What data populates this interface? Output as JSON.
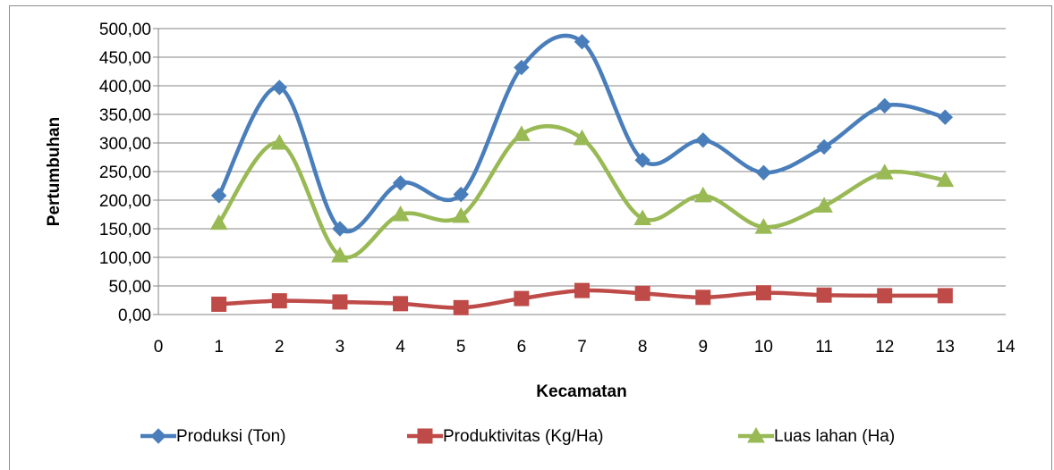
{
  "chart_data": {
    "type": "line",
    "smooth": true,
    "title": "",
    "xlabel": "Kecamatan",
    "ylabel": "Pertumbuhan",
    "xlim": [
      0,
      14
    ],
    "ylim": [
      0,
      500
    ],
    "x_ticks": [
      "0",
      "1",
      "2",
      "3",
      "4",
      "5",
      "6",
      "7",
      "8",
      "9",
      "10",
      "11",
      "12",
      "13",
      "14"
    ],
    "y_ticks": [
      "0,00",
      "50,00",
      "100,00",
      "150,00",
      "200,00",
      "250,00",
      "300,00",
      "350,00",
      "400,00",
      "450,00",
      "500,00"
    ],
    "grid": "horizontal",
    "legend_position": "bottom",
    "x": [
      1,
      2,
      3,
      4,
      5,
      6,
      7,
      8,
      9,
      10,
      11,
      12,
      13
    ],
    "series": [
      {
        "name": "Produksi (Ton)",
        "color": "#4a7ebb",
        "marker": "diamond",
        "values": [
          208,
          397,
          150,
          230,
          210,
          432,
          477,
          270,
          305,
          248,
          293,
          365,
          345
        ]
      },
      {
        "name": "Produktivitas (Kg/Ha)",
        "color": "#be4b48",
        "marker": "square",
        "values": [
          18,
          24,
          22,
          19,
          12,
          28,
          42,
          37,
          30,
          38,
          34,
          33,
          33
        ]
      },
      {
        "name": "Luas lahan (Ha)",
        "color": "#98b954",
        "marker": "triangle",
        "values": [
          160,
          300,
          103,
          175,
          172,
          315,
          308,
          168,
          208,
          153,
          190,
          248,
          235
        ]
      }
    ]
  }
}
